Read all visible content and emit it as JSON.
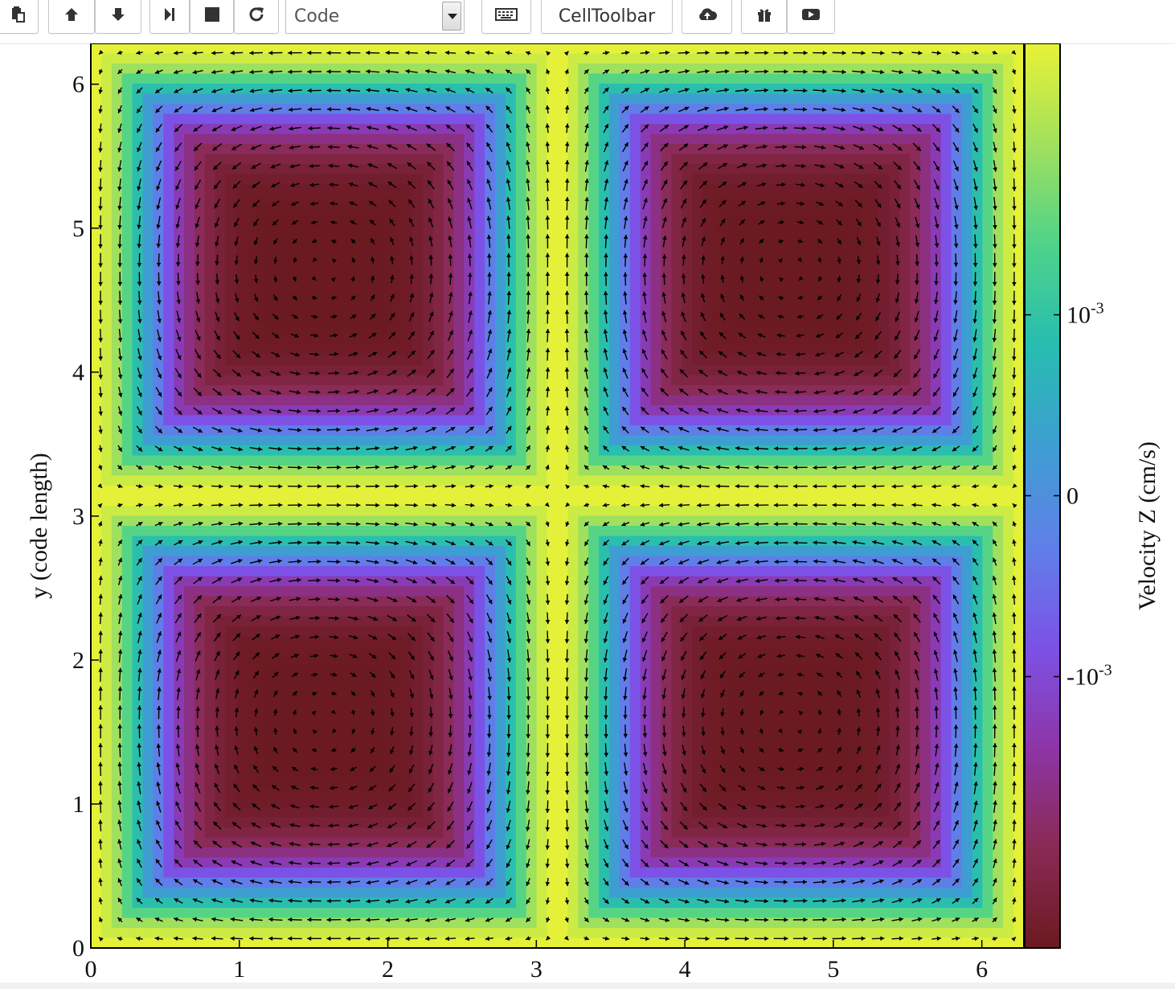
{
  "toolbar": {
    "buttons": [
      {
        "name": "paste-icon",
        "interactable": true
      },
      {
        "name": "move-up-icon",
        "interactable": true
      },
      {
        "name": "move-down-icon",
        "interactable": true
      },
      {
        "name": "run-step-icon",
        "interactable": true
      },
      {
        "name": "stop-icon",
        "interactable": true
      },
      {
        "name": "restart-icon",
        "interactable": true
      }
    ],
    "cell_type": "Code",
    "keyboard_icon": "keyboard-icon",
    "cell_toolbar_label": "CellToolbar",
    "upload_icon": "cloud-upload-icon",
    "gift_icon": "gift-icon",
    "video_icon": "video-icon"
  },
  "chart_data": {
    "type": "heatmap",
    "title": "",
    "xlabel": "",
    "ylabel": "y  (code length)",
    "xlim": [
      0,
      6.2832
    ],
    "ylim": [
      0,
      6.2832
    ],
    "x_ticks": [
      "0",
      "1",
      "2",
      "3",
      "4",
      "5",
      "6"
    ],
    "y_ticks": [
      "0",
      "1",
      "2",
      "3",
      "4",
      "5",
      "6"
    ],
    "x_tick_values": [
      0,
      1,
      2,
      3,
      4,
      5,
      6
    ],
    "y_tick_values": [
      0,
      1,
      2,
      3,
      4,
      5,
      6
    ],
    "colorbar": {
      "label": "Velocity Z  (cm/s)",
      "range": [
        -0.0025,
        0.0025
      ],
      "ticks": [
        {
          "value": 0.001,
          "label_base": "10",
          "label_exp": "-3"
        },
        {
          "value": 0,
          "label_base": "0",
          "label_exp": ""
        },
        {
          "value": -0.001,
          "label_base": "-10",
          "label_exp": "-3"
        }
      ],
      "colormap": [
        "#6b1a20",
        "#8a2a55",
        "#8e35a8",
        "#7c52e6",
        "#5f80e8",
        "#3e9ed2",
        "#27bdb0",
        "#4fd38a",
        "#a2e05d",
        "#e8f236"
      ]
    },
    "field": "vz = 0.0025*(1 - 2*(1-|cos x|)^2*(1-|cos y|)^2 ... ) approximated as channels along x=0, x=pi, x=2pi, y=0, y=pi, y=2pi",
    "vector_field": "velocity arrows converging toward x=pi and y=pi channels",
    "grid": false
  }
}
